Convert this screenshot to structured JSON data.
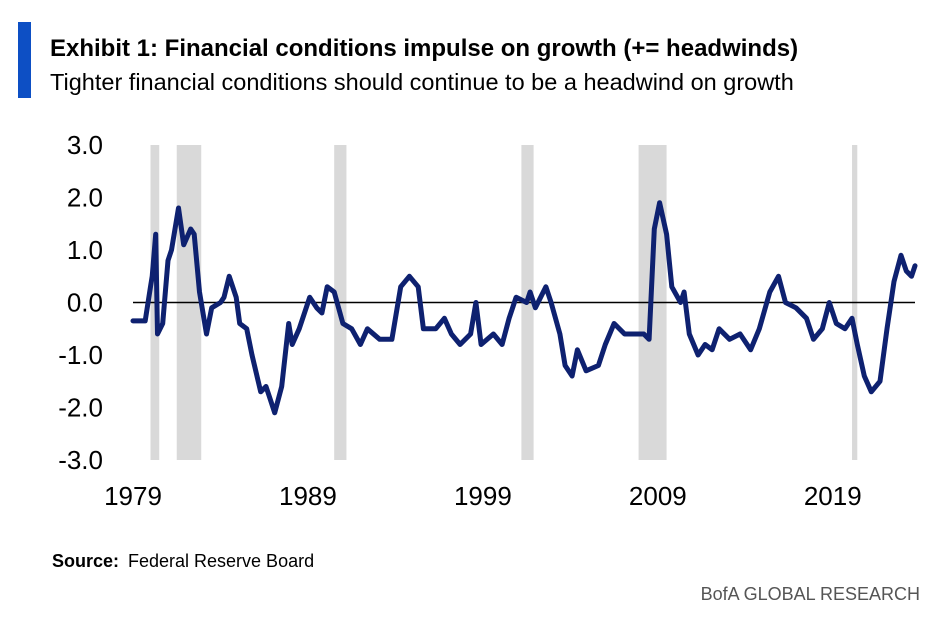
{
  "chart_data": {
    "type": "line",
    "title": "Exhibit 1: Financial conditions impulse on growth (+= headwinds)",
    "subtitle": "Tighter financial conditions should continue to be a headwind on growth",
    "source_label": "Source:",
    "source": "Federal Reserve Board",
    "brand": "BofA GLOBAL RESEARCH",
    "xlim": [
      1979,
      2023.7
    ],
    "xticks": [
      1979,
      1989,
      1999,
      2009,
      2019
    ],
    "ylim": [
      -3,
      3
    ],
    "yticks": [
      {
        "value": 3,
        "label": "3.0"
      },
      {
        "value": 2,
        "label": "2.0"
      },
      {
        "value": 1,
        "label": "1.0"
      },
      {
        "value": 0,
        "label": "0.0"
      },
      {
        "value": -1,
        "label": "-1.0"
      },
      {
        "value": -2,
        "label": "-2.0"
      },
      {
        "value": -3,
        "label": "-3.0"
      }
    ],
    "zero_line": true,
    "recession_color": "#d9d9d9",
    "recessions": [
      [
        1980.0,
        1980.5
      ],
      [
        1981.5,
        1982.9
      ],
      [
        1990.5,
        1991.2
      ],
      [
        2001.2,
        2001.9
      ],
      [
        2007.9,
        2009.5
      ],
      [
        2020.1,
        2020.4
      ]
    ],
    "x": [
      1979.0,
      1979.7,
      1980.0,
      1980.1,
      1980.3,
      1980.4,
      1980.7,
      1981.0,
      1981.2,
      1981.6,
      1981.9,
      1982.3,
      1982.5,
      1982.8,
      1983.2,
      1983.5,
      1984.0,
      1984.2,
      1984.5,
      1984.9,
      1985.1,
      1985.5,
      1985.8,
      1986.3,
      1986.6,
      1986.8,
      1987.1,
      1987.5,
      1987.9,
      1988.1,
      1988.5,
      1989.1,
      1989.5,
      1989.8,
      1990.1,
      1990.5,
      1991.0,
      1991.5,
      1992.0,
      1992.4,
      1993.1,
      1993.8,
      1994.3,
      1994.8,
      1995.3,
      1995.6,
      1996.3,
      1996.8,
      1997.2,
      1997.7,
      1998.3,
      1998.6,
      1998.9,
      1999.6,
      2000.1,
      2000.5,
      2000.9,
      2001.5,
      2001.7,
      2002.0,
      2002.6,
      2002.9,
      2003.4,
      2003.7,
      2004.1,
      2004.4,
      2004.9,
      2005.6,
      2006.0,
      2006.5,
      2007.1,
      2007.6,
      2008.2,
      2008.5,
      2008.8,
      2009.1,
      2009.5,
      2009.8,
      2010.3,
      2010.5,
      2010.8,
      2011.3,
      2011.7,
      2012.1,
      2012.5,
      2013.1,
      2013.7,
      2014.3,
      2014.8,
      2015.4,
      2015.9,
      2016.3,
      2016.9,
      2017.5,
      2017.9,
      2018.4,
      2018.8,
      2019.2,
      2019.7,
      2020.1,
      2020.4,
      2020.8,
      2021.2,
      2021.7,
      2022.1,
      2022.5,
      2022.9,
      2023.2,
      2023.5,
      2023.7
    ],
    "series": [
      {
        "color": "#0e2170",
        "values": [
          -0.35,
          -0.35,
          0.3,
          0.5,
          1.3,
          -0.6,
          -0.4,
          0.8,
          1.0,
          1.8,
          1.1,
          1.4,
          1.3,
          0.2,
          -0.6,
          -0.1,
          0.0,
          0.1,
          0.5,
          0.1,
          -0.4,
          -0.5,
          -1.0,
          -1.7,
          -1.6,
          -1.8,
          -2.1,
          -1.6,
          -0.4,
          -0.8,
          -0.5,
          0.1,
          -0.1,
          -0.2,
          0.3,
          0.2,
          -0.4,
          -0.5,
          -0.8,
          -0.5,
          -0.7,
          -0.7,
          0.3,
          0.5,
          0.3,
          -0.5,
          -0.5,
          -0.3,
          -0.6,
          -0.8,
          -0.6,
          0.0,
          -0.8,
          -0.6,
          -0.8,
          -0.3,
          0.1,
          0.0,
          0.2,
          -0.1,
          0.3,
          0.0,
          -0.6,
          -1.2,
          -1.4,
          -0.9,
          -1.3,
          -1.2,
          -0.8,
          -0.4,
          -0.6,
          -0.6,
          -0.6,
          -0.7,
          1.4,
          1.9,
          1.3,
          0.3,
          0.0,
          0.2,
          -0.6,
          -1.0,
          -0.8,
          -0.9,
          -0.5,
          -0.7,
          -0.6,
          -0.9,
          -0.5,
          0.2,
          0.5,
          0.0,
          -0.1,
          -0.3,
          -0.7,
          -0.5,
          0.0,
          -0.4,
          -0.5,
          -0.3,
          -0.8,
          -1.4,
          -1.7,
          -1.5,
          -0.5,
          0.4,
          0.9,
          0.6,
          0.5,
          0.7
        ]
      }
    ]
  }
}
